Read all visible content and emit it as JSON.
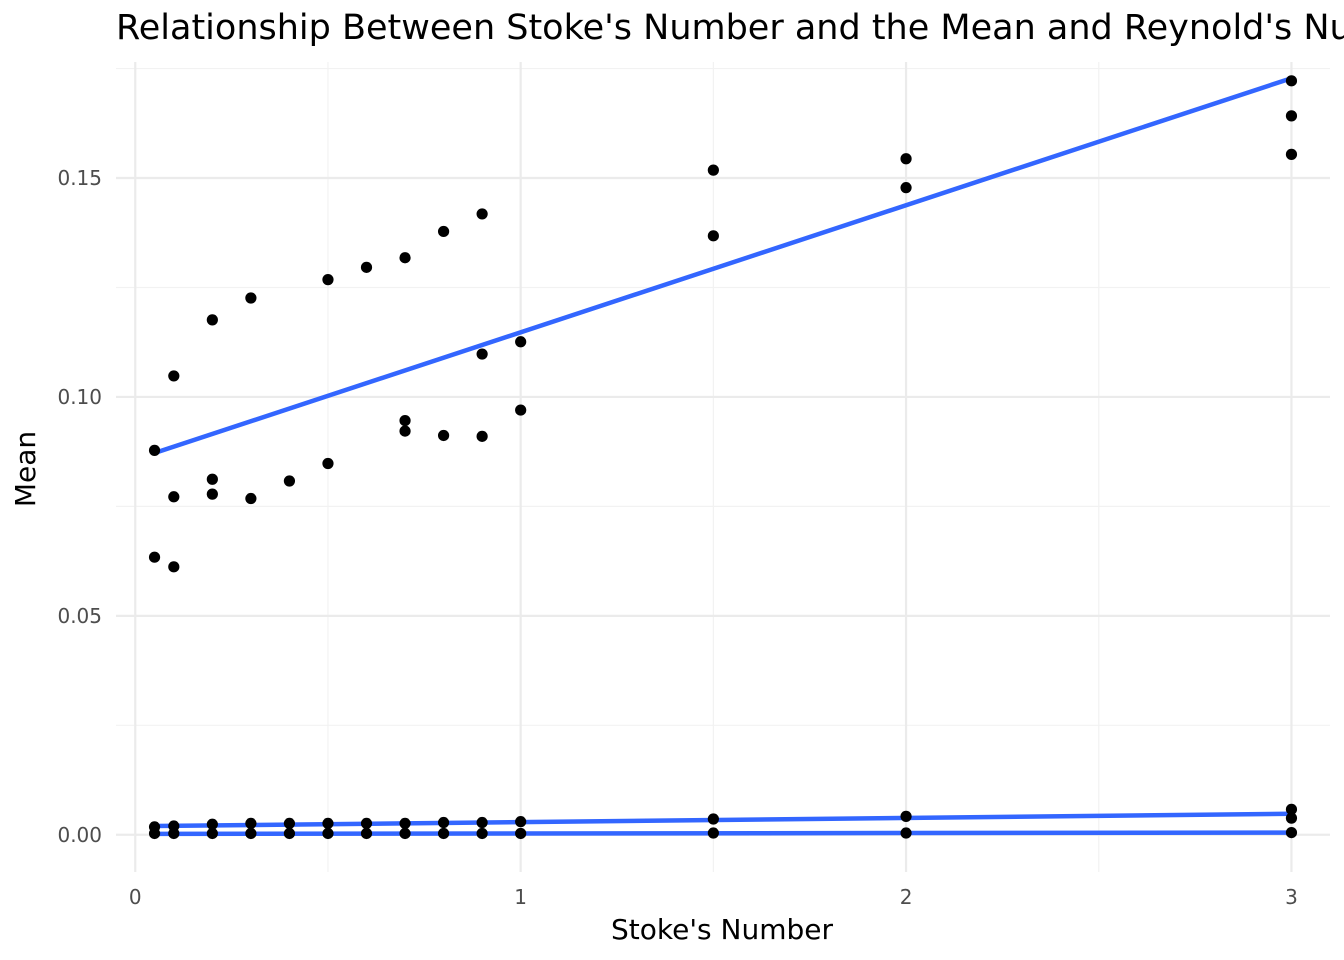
{
  "chart_data": {
    "type": "scatter",
    "title": "Relationship Between Stoke's Number and the Mean and Reynold's Nu",
    "xlabel": "Stoke's Number",
    "ylabel": "Mean",
    "xlim": [
      -0.05,
      3.1
    ],
    "ylim": [
      -0.0085,
      0.1765
    ],
    "x_ticks": [
      0,
      1,
      2,
      3
    ],
    "x_tick_labels": [
      "0",
      "1",
      "2",
      "3"
    ],
    "y_ticks": [
      0.0,
      0.05,
      0.1,
      0.15
    ],
    "y_tick_labels": [
      "0.00",
      "0.05",
      "0.10",
      "0.15"
    ],
    "grid": true,
    "legend": "none",
    "point_color": "#000000",
    "line_color": "#3366ff",
    "series": [
      {
        "points": [
          [
            0.05,
            0.0878
          ],
          [
            0.1,
            0.1048
          ],
          [
            0.2,
            0.1176
          ],
          [
            0.3,
            0.1226
          ],
          [
            0.5,
            0.1268
          ],
          [
            0.6,
            0.1296
          ],
          [
            0.7,
            0.1318
          ],
          [
            0.8,
            0.1378
          ],
          [
            0.9,
            0.1418
          ],
          [
            0.9,
            0.1098
          ],
          [
            1.0,
            0.1126
          ],
          [
            1.5,
            0.1518
          ],
          [
            1.5,
            0.1368
          ],
          [
            2.0,
            0.1544
          ],
          [
            2.0,
            0.1478
          ],
          [
            3.0,
            0.1722
          ],
          [
            3.0,
            0.1642
          ],
          [
            3.0,
            0.1554
          ],
          [
            0.05,
            0.0634
          ],
          [
            0.1,
            0.0612
          ],
          [
            0.1,
            0.0772
          ],
          [
            0.2,
            0.0812
          ],
          [
            0.2,
            0.0778
          ],
          [
            0.3,
            0.0768
          ],
          [
            0.4,
            0.0808
          ],
          [
            0.5,
            0.0848
          ],
          [
            0.7,
            0.0946
          ],
          [
            0.7,
            0.0922
          ],
          [
            0.8,
            0.0912
          ],
          [
            0.9,
            0.091
          ],
          [
            1.0,
            0.097
          ]
        ],
        "fit": [
          [
            0.05,
            0.0872
          ],
          [
            3.0,
            0.1728
          ]
        ]
      },
      {
        "points": [
          [
            0.05,
            0.0018
          ],
          [
            0.1,
            0.002
          ],
          [
            0.2,
            0.0024
          ],
          [
            0.3,
            0.0026
          ],
          [
            0.4,
            0.0026
          ],
          [
            0.5,
            0.0026
          ],
          [
            0.6,
            0.0026
          ],
          [
            0.7,
            0.0026
          ],
          [
            0.8,
            0.0028
          ],
          [
            0.9,
            0.0028
          ],
          [
            1.0,
            0.003
          ],
          [
            1.5,
            0.0036
          ],
          [
            2.0,
            0.0042
          ],
          [
            3.0,
            0.0058
          ],
          [
            3.0,
            0.0038
          ]
        ],
        "fit": [
          [
            0.05,
            0.002
          ],
          [
            3.0,
            0.0048
          ]
        ]
      },
      {
        "points": [
          [
            0.05,
            0.0003
          ],
          [
            0.1,
            0.0003
          ],
          [
            0.2,
            0.0003
          ],
          [
            0.3,
            0.0003
          ],
          [
            0.4,
            0.0003
          ],
          [
            0.5,
            0.0003
          ],
          [
            0.6,
            0.0003
          ],
          [
            0.7,
            0.0003
          ],
          [
            0.8,
            0.0003
          ],
          [
            0.9,
            0.0003
          ],
          [
            1.0,
            0.0003
          ],
          [
            1.5,
            0.0004
          ],
          [
            2.0,
            0.0004
          ],
          [
            3.0,
            0.0005
          ]
        ],
        "fit": [
          [
            0.05,
            0.0002
          ],
          [
            3.0,
            0.0005
          ]
        ]
      }
    ]
  }
}
